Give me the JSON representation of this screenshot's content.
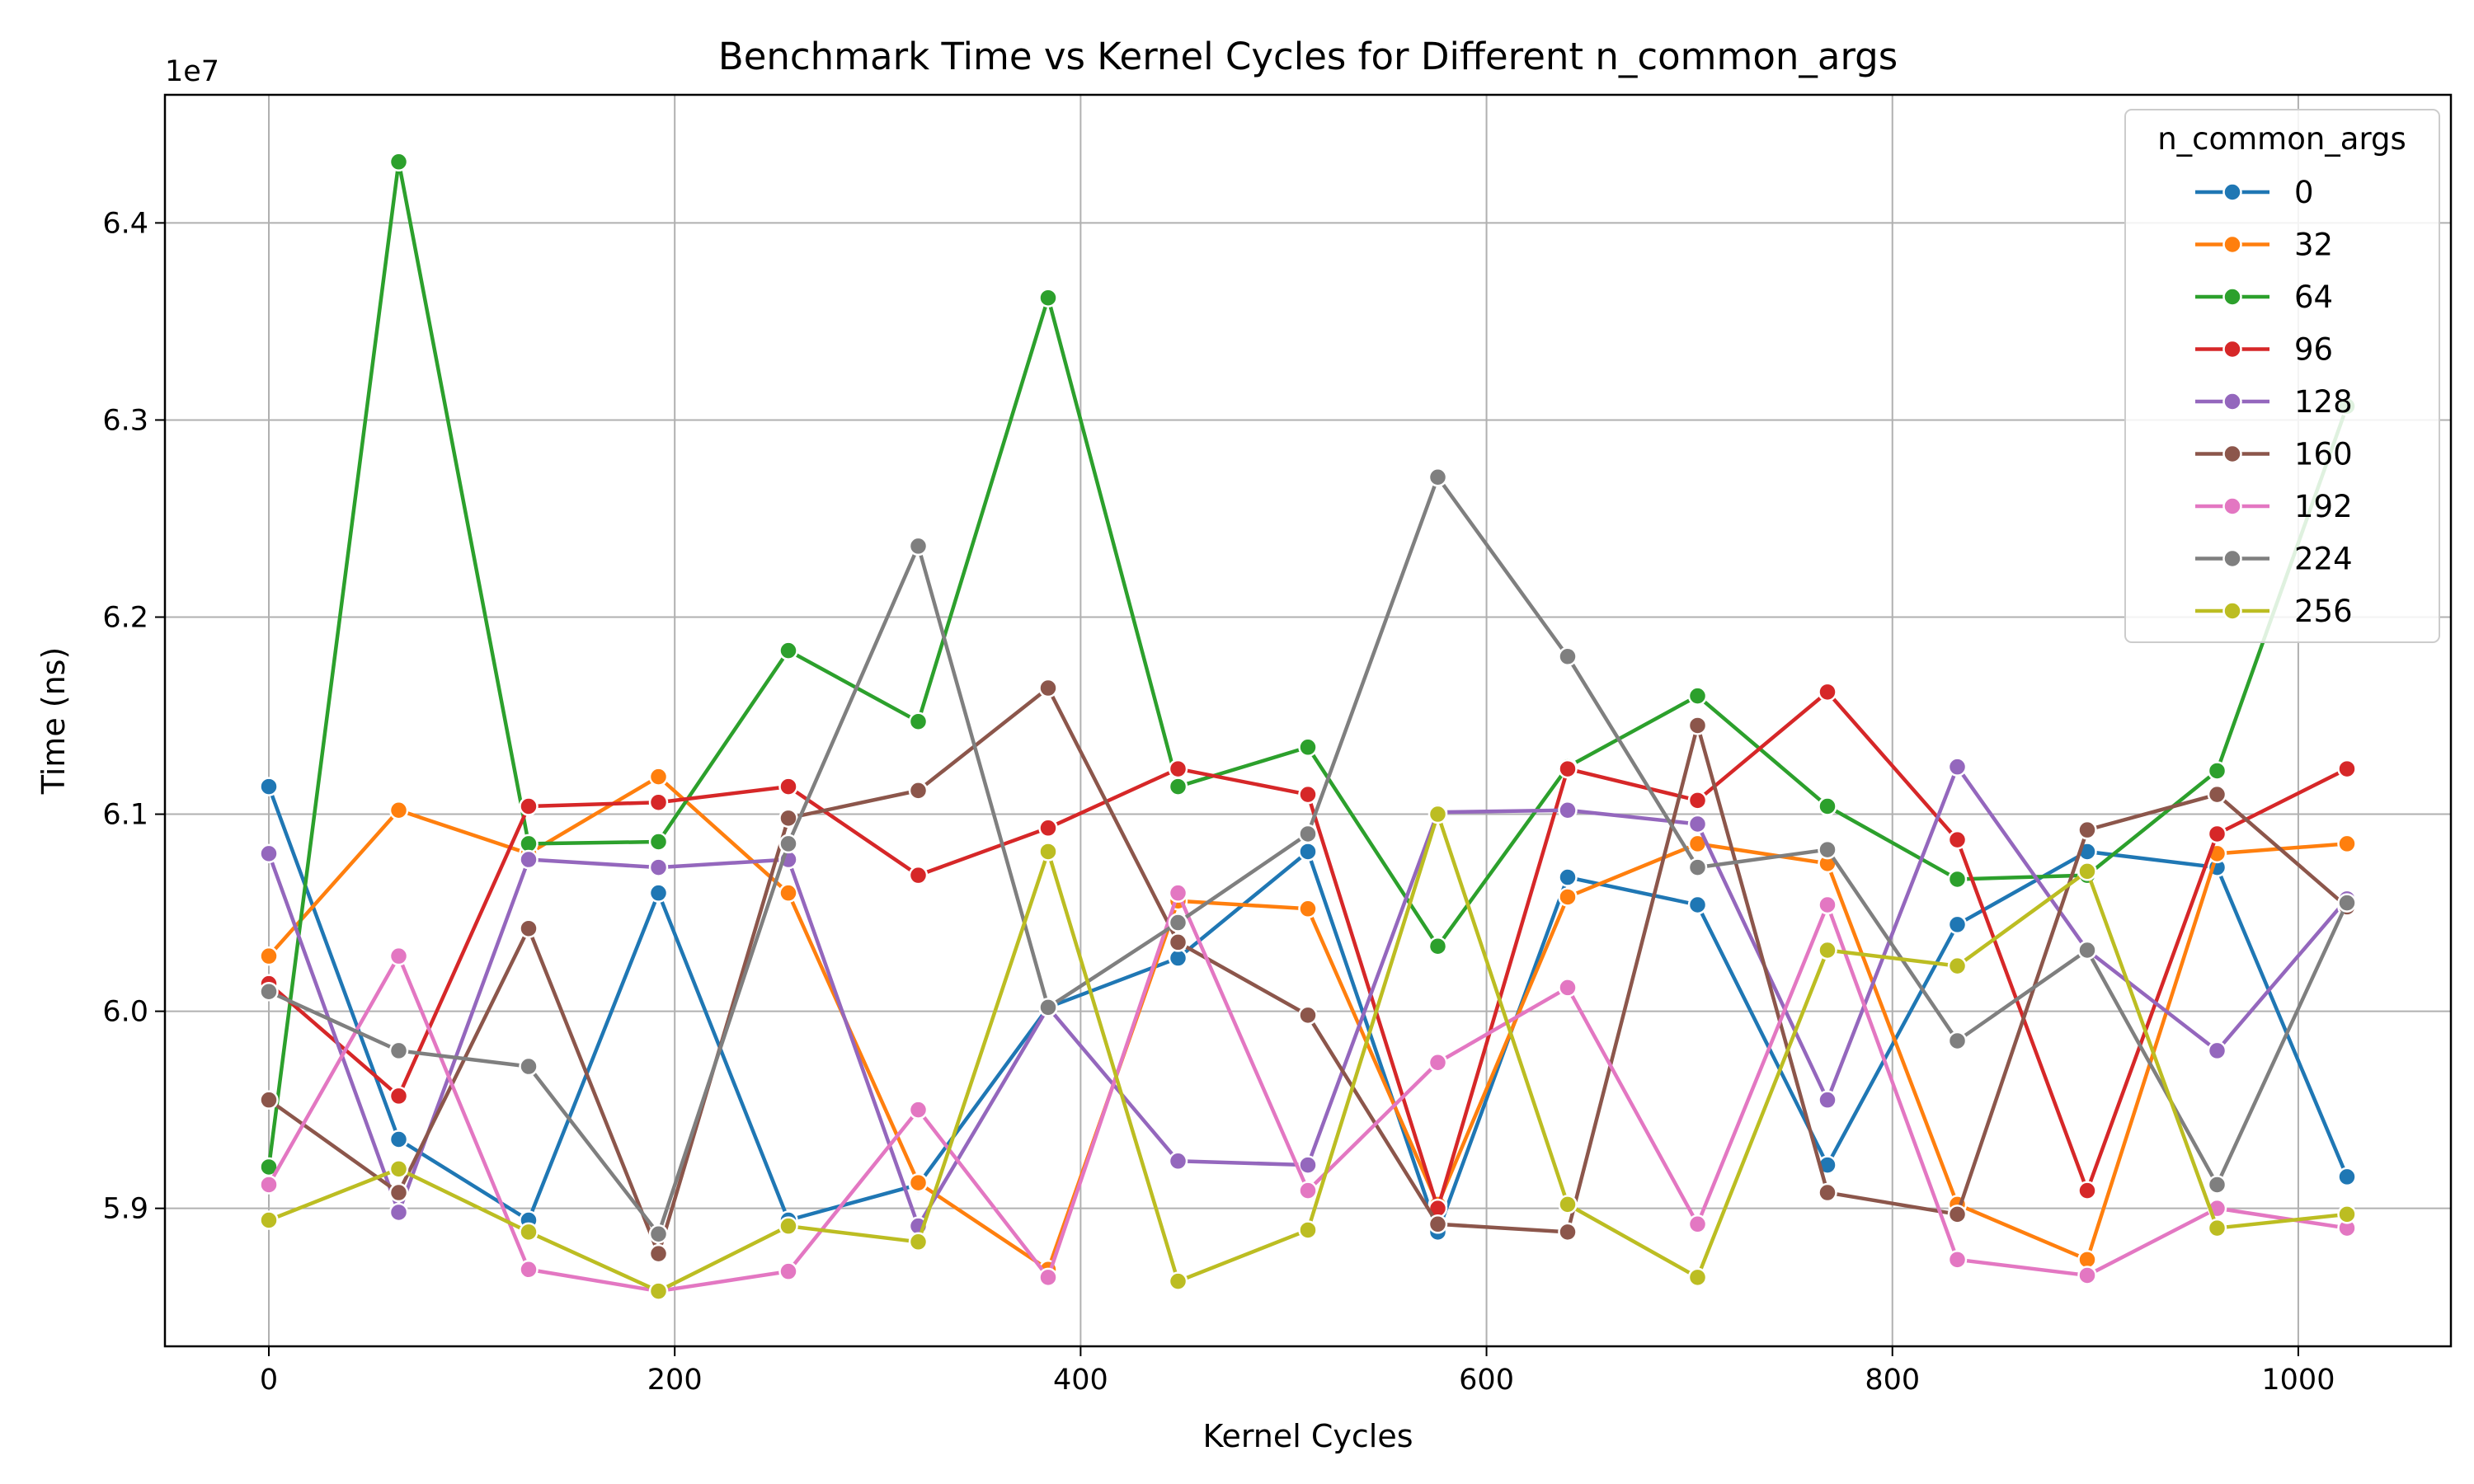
{
  "chart_data": {
    "type": "line",
    "title": "Benchmark Time vs Kernel Cycles for Different n_common_args",
    "xlabel": "Kernel Cycles",
    "ylabel": "Time (ns)",
    "y_offset_label": "1e7",
    "xlim": [
      -51.2,
      1075.2
    ],
    "ylim": [
      5.83,
      6.465
    ],
    "x_ticks": [
      0,
      200,
      400,
      600,
      800,
      1000
    ],
    "y_ticks": [
      5.9,
      6.0,
      6.1,
      6.2,
      6.3,
      6.4
    ],
    "x_tick_labels": [
      "0",
      "200",
      "400",
      "600",
      "800",
      "1000"
    ],
    "y_tick_labels": [
      "5.9",
      "6.0",
      "6.1",
      "6.2",
      "6.3",
      "6.4"
    ],
    "grid": true,
    "legend_title": "n_common_args",
    "legend_position": "top-right",
    "x": [
      0,
      64,
      128,
      192,
      256,
      320,
      384,
      448,
      512,
      576,
      640,
      704,
      768,
      832,
      896,
      960,
      1024
    ],
    "series": [
      {
        "name": "0",
        "color": "#1f77b4",
        "values": [
          6.114,
          5.935,
          5.894,
          6.06,
          5.894,
          5.912,
          6.002,
          6.027,
          6.081,
          5.888,
          6.068,
          6.054,
          5.922,
          6.044,
          6.081,
          6.073,
          5.916
        ]
      },
      {
        "name": "32",
        "color": "#ff7f0e",
        "values": [
          6.028,
          6.102,
          6.08,
          6.119,
          6.06,
          5.913,
          5.869,
          6.056,
          6.052,
          5.902,
          6.058,
          6.085,
          6.075,
          5.902,
          5.874,
          6.08,
          6.085
        ]
      },
      {
        "name": "64",
        "color": "#2ca02c",
        "values": [
          5.921,
          6.431,
          6.085,
          6.086,
          6.183,
          6.147,
          6.362,
          6.114,
          6.134,
          6.033,
          6.124,
          6.16,
          6.104,
          6.067,
          6.069,
          6.122,
          6.307
        ]
      },
      {
        "name": "96",
        "color": "#d62728",
        "values": [
          6.014,
          5.957,
          6.104,
          6.106,
          6.114,
          6.069,
          6.093,
          6.123,
          6.11,
          5.9,
          6.123,
          6.107,
          6.162,
          6.087,
          5.909,
          6.09,
          6.123
        ]
      },
      {
        "name": "128",
        "color": "#9467bd",
        "values": [
          6.08,
          5.898,
          6.077,
          6.073,
          6.077,
          5.891,
          6.002,
          5.924,
          5.922,
          6.101,
          6.102,
          6.095,
          5.955,
          6.124,
          6.031,
          5.98,
          6.057
        ]
      },
      {
        "name": "160",
        "color": "#8c564b",
        "values": [
          5.955,
          5.908,
          6.042,
          5.877,
          6.098,
          6.112,
          6.164,
          6.035,
          5.998,
          5.892,
          5.888,
          6.145,
          5.908,
          5.897,
          6.092,
          6.11,
          6.053
        ]
      },
      {
        "name": "192",
        "color": "#e377c2",
        "values": [
          5.912,
          6.028,
          5.869,
          5.858,
          5.868,
          5.95,
          5.865,
          6.06,
          5.909,
          5.974,
          6.012,
          5.892,
          6.054,
          5.874,
          5.866,
          5.9,
          5.89
        ]
      },
      {
        "name": "224",
        "color": "#7f7f7f",
        "values": [
          6.01,
          5.98,
          5.972,
          5.887,
          6.085,
          6.236,
          6.002,
          6.045,
          6.09,
          6.271,
          6.18,
          6.073,
          6.082,
          5.985,
          6.031,
          5.912,
          6.055
        ]
      },
      {
        "name": "256",
        "color": "#bcbd22",
        "values": [
          5.894,
          5.92,
          5.888,
          5.858,
          5.891,
          5.883,
          6.081,
          5.863,
          5.889,
          6.1,
          5.902,
          5.865,
          6.031,
          6.023,
          6.071,
          5.89,
          5.897
        ]
      }
    ]
  }
}
